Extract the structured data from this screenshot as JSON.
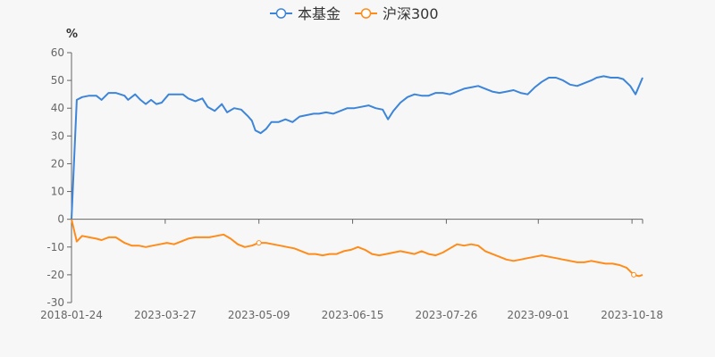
{
  "chart_data": {
    "type": "line",
    "unit": "%",
    "legend_placement": "top-center",
    "series": [
      {
        "name": "本基金",
        "color": "#3d85d8",
        "points": [
          [
            0,
            0
          ],
          [
            3,
            43
          ],
          [
            6,
            44
          ],
          [
            10,
            44.5
          ],
          [
            14,
            44.5
          ],
          [
            17,
            43
          ],
          [
            21,
            45.5
          ],
          [
            25,
            45.5
          ],
          [
            30,
            44.5
          ],
          [
            32,
            43
          ],
          [
            36,
            45
          ],
          [
            39,
            43
          ],
          [
            42,
            41.5
          ],
          [
            45,
            43
          ],
          [
            48,
            41.5
          ],
          [
            51,
            42
          ],
          [
            55,
            45
          ],
          [
            59,
            45
          ],
          [
            63,
            45
          ],
          [
            66,
            43.5
          ],
          [
            70,
            42.5
          ],
          [
            74,
            43.5
          ],
          [
            77,
            40.5
          ],
          [
            81,
            39
          ],
          [
            85,
            41.5
          ],
          [
            88,
            38.5
          ],
          [
            92,
            40
          ],
          [
            96,
            39.5
          ],
          [
            100,
            37
          ],
          [
            102,
            35.5
          ],
          [
            104,
            32
          ],
          [
            107,
            31
          ],
          [
            110,
            32.5
          ],
          [
            113,
            35
          ],
          [
            117,
            35
          ],
          [
            121,
            36
          ],
          [
            125,
            35
          ],
          [
            129,
            37
          ],
          [
            133,
            37.5
          ],
          [
            137,
            38
          ],
          [
            140,
            38
          ],
          [
            144,
            38.5
          ],
          [
            148,
            38
          ],
          [
            152,
            39
          ],
          [
            156,
            40
          ],
          [
            160,
            40
          ],
          [
            164,
            40.5
          ],
          [
            168,
            41
          ],
          [
            172,
            40
          ],
          [
            176,
            39.5
          ],
          [
            179,
            36
          ],
          [
            182,
            39
          ],
          [
            186,
            42
          ],
          [
            190,
            44
          ],
          [
            194,
            45
          ],
          [
            198,
            44.5
          ],
          [
            202,
            44.5
          ],
          [
            206,
            45.5
          ],
          [
            210,
            45.5
          ],
          [
            214,
            45
          ],
          [
            218,
            46
          ],
          [
            222,
            47
          ],
          [
            226,
            47.5
          ],
          [
            230,
            48
          ],
          [
            234,
            47
          ],
          [
            238,
            46
          ],
          [
            242,
            45.5
          ],
          [
            246,
            46
          ],
          [
            250,
            46.5
          ],
          [
            254,
            45.5
          ],
          [
            258,
            45
          ],
          [
            262,
            47.5
          ],
          [
            266,
            49.5
          ],
          [
            270,
            51
          ],
          [
            274,
            51
          ],
          [
            278,
            50
          ],
          [
            282,
            48.5
          ],
          [
            286,
            48
          ],
          [
            290,
            49
          ],
          [
            294,
            50
          ],
          [
            297,
            51
          ],
          [
            301,
            51.5
          ],
          [
            305,
            51
          ],
          [
            309,
            51
          ],
          [
            312,
            50.5
          ],
          [
            316,
            48
          ],
          [
            319,
            45
          ],
          [
            323,
            51
          ]
        ]
      },
      {
        "name": "沪深300",
        "color": "#ff8c1a",
        "points": [
          [
            0,
            0
          ],
          [
            3,
            -8
          ],
          [
            6,
            -6
          ],
          [
            10,
            -6.5
          ],
          [
            14,
            -7
          ],
          [
            17,
            -7.5
          ],
          [
            21,
            -6.5
          ],
          [
            25,
            -6.5
          ],
          [
            30,
            -8.5
          ],
          [
            34,
            -9.5
          ],
          [
            38,
            -9.5
          ],
          [
            42,
            -10
          ],
          [
            46,
            -9.5
          ],
          [
            50,
            -9
          ],
          [
            54,
            -8.5
          ],
          [
            58,
            -9
          ],
          [
            62,
            -8
          ],
          [
            66,
            -7
          ],
          [
            70,
            -6.5
          ],
          [
            74,
            -6.5
          ],
          [
            78,
            -6.5
          ],
          [
            82,
            -6
          ],
          [
            86,
            -5.5
          ],
          [
            90,
            -7
          ],
          [
            94,
            -9
          ],
          [
            98,
            -10
          ],
          [
            102,
            -9.5
          ],
          [
            106,
            -8.5
          ],
          [
            110,
            -8.5
          ],
          [
            114,
            -9
          ],
          [
            118,
            -9.5
          ],
          [
            122,
            -10
          ],
          [
            126,
            -10.5
          ],
          [
            130,
            -11.5
          ],
          [
            134,
            -12.5
          ],
          [
            138,
            -12.5
          ],
          [
            142,
            -13
          ],
          [
            146,
            -12.5
          ],
          [
            150,
            -12.5
          ],
          [
            154,
            -11.5
          ],
          [
            158,
            -11
          ],
          [
            162,
            -10
          ],
          [
            166,
            -11
          ],
          [
            170,
            -12.5
          ],
          [
            174,
            -13
          ],
          [
            178,
            -12.5
          ],
          [
            182,
            -12
          ],
          [
            186,
            -11.5
          ],
          [
            190,
            -12
          ],
          [
            194,
            -12.5
          ],
          [
            198,
            -11.5
          ],
          [
            202,
            -12.5
          ],
          [
            206,
            -13
          ],
          [
            210,
            -12
          ],
          [
            214,
            -10.5
          ],
          [
            218,
            -9
          ],
          [
            222,
            -9.5
          ],
          [
            226,
            -9
          ],
          [
            230,
            -9.5
          ],
          [
            234,
            -11.5
          ],
          [
            238,
            -12.5
          ],
          [
            242,
            -13.5
          ],
          [
            246,
            -14.5
          ],
          [
            250,
            -15
          ],
          [
            254,
            -14.5
          ],
          [
            258,
            -14
          ],
          [
            262,
            -13.5
          ],
          [
            266,
            -13
          ],
          [
            270,
            -13.5
          ],
          [
            274,
            -14
          ],
          [
            278,
            -14.5
          ],
          [
            282,
            -15
          ],
          [
            286,
            -15.5
          ],
          [
            290,
            -15.5
          ],
          [
            294,
            -15
          ],
          [
            298,
            -15.5
          ],
          [
            302,
            -16
          ],
          [
            306,
            -16
          ],
          [
            310,
            -16.5
          ],
          [
            314,
            -17.5
          ],
          [
            318,
            -20
          ],
          [
            321,
            -20.5
          ],
          [
            323,
            -20
          ]
        ]
      }
    ],
    "x_points": 324,
    "x_tick_labels": [
      {
        "label": "2018-01-24",
        "index": 0
      },
      {
        "label": "2023-03-27",
        "index": 53
      },
      {
        "label": "2023-05-09",
        "index": 106
      },
      {
        "label": "2023-06-15",
        "index": 159
      },
      {
        "label": "2023-07-26",
        "index": 212
      },
      {
        "label": "2023-09-01",
        "index": 264
      },
      {
        "label": "2023-10-18",
        "index": 317
      }
    ],
    "y_ticks": [
      -30,
      -20,
      -10,
      0,
      10,
      20,
      30,
      40,
      50,
      60
    ],
    "ylim": [
      -30,
      60
    ],
    "grid": false,
    "marker_every": 53
  },
  "colors": {
    "background": "#f7f7f7",
    "axis": "#666666",
    "text": "#333333"
  }
}
